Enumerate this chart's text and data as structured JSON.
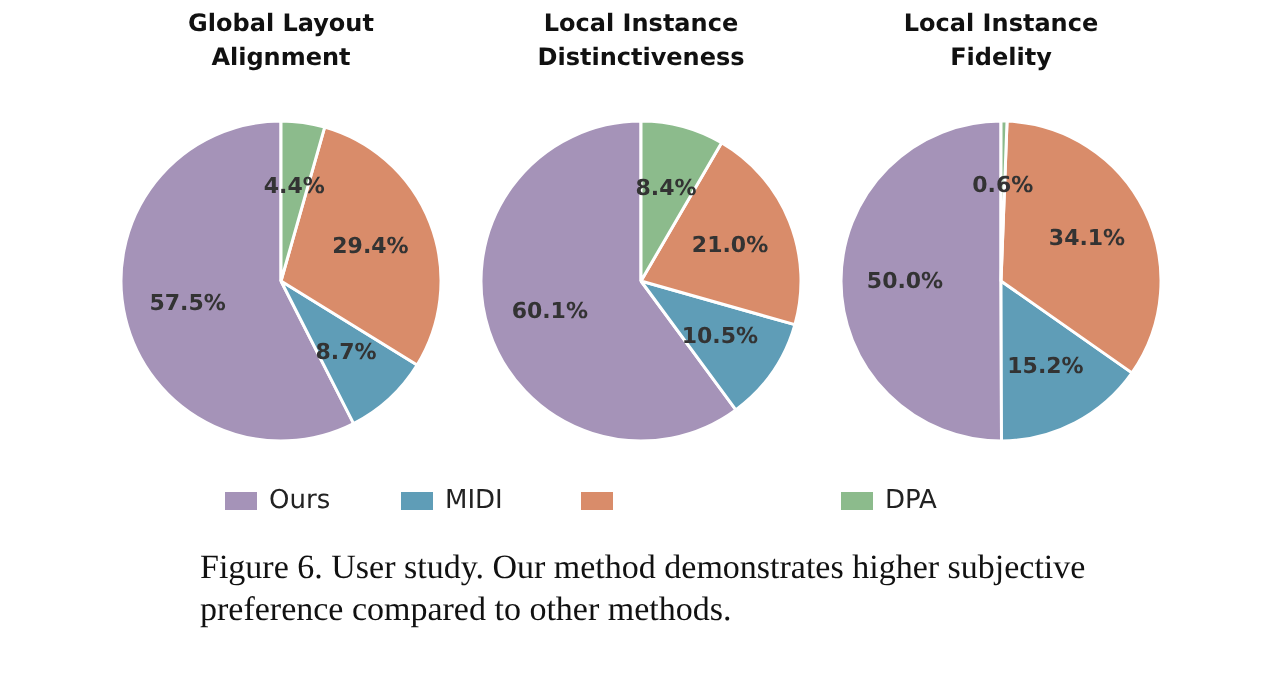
{
  "chart_data": [
    {
      "type": "pie",
      "title": "Global Layout Alignment",
      "categories": [
        "Ours",
        "MIDI",
        null,
        "DPA"
      ],
      "values": [
        57.5,
        8.7,
        29.4,
        4.4
      ],
      "value_labels": [
        "57.5%",
        "8.7%",
        "29.4%",
        "4.4%"
      ],
      "colors": [
        "#a593b8",
        "#5f9db7",
        "#d98c6a",
        "#8cbb8c"
      ],
      "legend": "bottom",
      "annotations": [
        "Figure 6. User study. Our method demonstrates higher subjective preference compared to other methods."
      ]
    },
    {
      "type": "pie",
      "title": "Local Instance Distinctiveness",
      "values": [
        60.1,
        10.5,
        21.0,
        8.4
      ],
      "value_labels": [
        "60.1%",
        "10.5%",
        "21.0%",
        "8.4%"
      ],
      "colors": [
        "#a593b8",
        "#5f9db7",
        "#d98c6a",
        "#8cbb8c"
      ]
    },
    {
      "type": "pie",
      "title": "Local Instance Fidelity",
      "values": [
        50.0,
        15.2,
        34.1,
        0.6
      ],
      "value_labels": [
        "50.0%",
        "15.2%",
        "34.1%",
        "0.6%"
      ],
      "colors": [
        "#a593b8",
        "#5f9db7",
        "#d98c6a",
        "#8cbb8c"
      ]
    }
  ]
}
